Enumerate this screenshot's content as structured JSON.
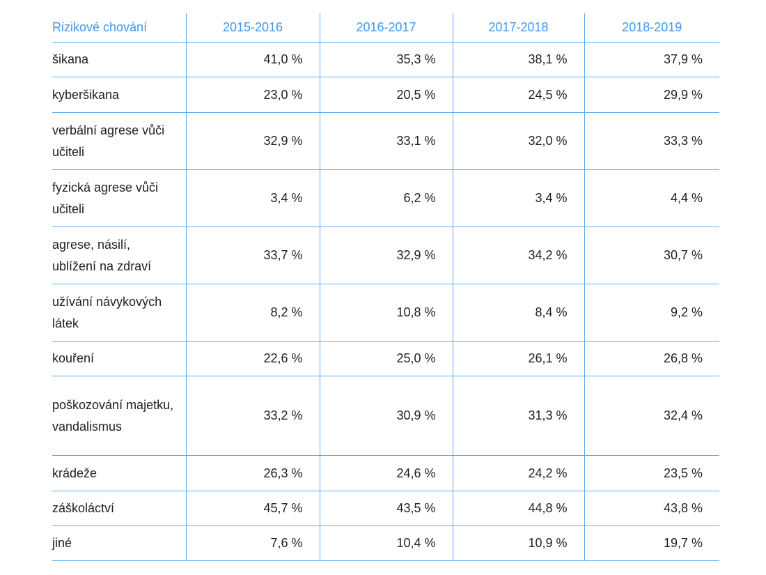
{
  "table": {
    "headers": [
      "Rizikové chování",
      "2015-2016",
      "2016-2017",
      "2017-2018",
      "2018-2019"
    ],
    "rows": [
      {
        "label": "šikana",
        "values": [
          "41,0 %",
          "35,3 %",
          "38,1 %",
          "37,9 %"
        ]
      },
      {
        "label": "kyberšikana",
        "values": [
          "23,0 %",
          "20,5 %",
          "24,5 %",
          "29,9 %"
        ]
      },
      {
        "label": "verbální agrese vůči učiteli",
        "values": [
          "32,9 %",
          "33,1 %",
          "32,0 %",
          "33,3 %"
        ]
      },
      {
        "label": "fyzická agrese vůči učiteli",
        "values": [
          "3,4 %",
          "6,2 %",
          "3,4 %",
          "4,4 %"
        ]
      },
      {
        "label": "agrese, násilí, ublížení na zdraví",
        "values": [
          "33,7 %",
          "32,9 %",
          "34,2 %",
          "30,7 %"
        ]
      },
      {
        "label": "užívání návykových látek",
        "values": [
          "8,2 %",
          "10,8 %",
          "8,4 %",
          "9,2 %"
        ]
      },
      {
        "label": "kouření",
        "values": [
          "22,6 %",
          "25,0 %",
          "26,1 %",
          "26,8 %"
        ]
      },
      {
        "label": "poškozování majetku, vandalismus",
        "values": [
          "33,2 %",
          "30,9 %",
          "31,3 %",
          "32,4 %"
        ]
      },
      {
        "label": "krádeže",
        "values": [
          "26,3 %",
          "24,6 %",
          "24,2 %",
          "23,5 %"
        ]
      },
      {
        "label": "záškoláctví",
        "values": [
          "45,7 %",
          "43,5 %",
          "44,8 %",
          "43,8 %"
        ]
      },
      {
        "label": "jiné",
        "values": [
          "7,6 %",
          "10,4 %",
          "10,9 %",
          "19,7 %"
        ]
      }
    ]
  }
}
